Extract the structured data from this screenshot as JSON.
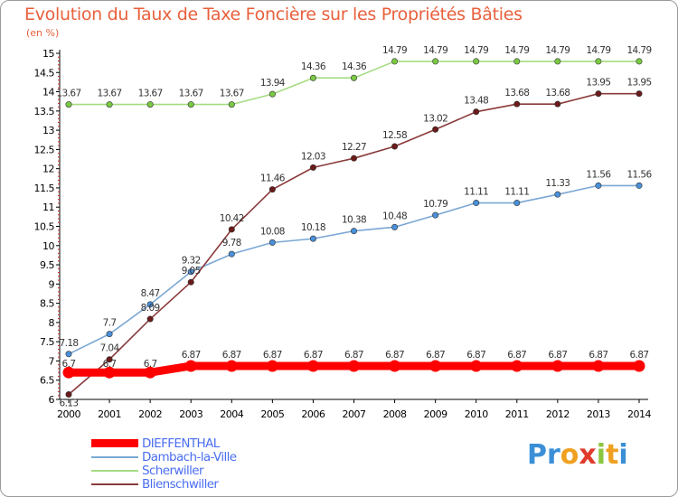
{
  "title": "Evolution du Taux de Taxe Foncière sur les Propriétés Bâties",
  "unit_label": "(en %)",
  "logo": {
    "text": "Proxiti",
    "letters": [
      {
        "ch": "P",
        "color": "#3a8fd6"
      },
      {
        "ch": "r",
        "color": "#3a8fd6"
      },
      {
        "ch": "o",
        "color": "#f0a020"
      },
      {
        "ch": "x",
        "color": "#e03a2c"
      },
      {
        "ch": "i",
        "color": "#8cc63f"
      },
      {
        "ch": "t",
        "color": "#f0a020"
      },
      {
        "ch": "i",
        "color": "#3a8fd6"
      }
    ]
  },
  "chart_data": {
    "type": "line",
    "x": [
      2000,
      2001,
      2002,
      2003,
      2004,
      2005,
      2006,
      2007,
      2008,
      2009,
      2010,
      2011,
      2012,
      2013,
      2014
    ],
    "ylim": [
      6,
      15
    ],
    "yticks": [
      6,
      6.5,
      7,
      7.5,
      8,
      8.5,
      9,
      9.5,
      10,
      10.5,
      11,
      11.5,
      12,
      12.5,
      13,
      13.5,
      14,
      14.5,
      15
    ],
    "ytick_labels": [
      "6",
      "6.5",
      "7",
      "7.5",
      "8",
      "8.5",
      "9",
      "9.5",
      "10",
      "10.5",
      "11",
      "11.5",
      "12",
      "12.5",
      "13",
      "13.5",
      "14",
      "14.5",
      "15"
    ],
    "grid": false,
    "legend_position": "bottom-left",
    "series": [
      {
        "name": "DIEFFENTHAL",
        "color": "#ff0000",
        "marker_color": "#ff0000",
        "emphasis": true,
        "values": [
          6.7,
          6.7,
          6.7,
          6.87,
          6.87,
          6.87,
          6.87,
          6.87,
          6.87,
          6.87,
          6.87,
          6.87,
          6.87,
          6.87,
          6.87
        ],
        "labels": [
          "6.7",
          "6.7",
          "6.7",
          "6.87",
          "6.87",
          "6.87",
          "6.87",
          "6.87",
          "6.87",
          "6.87",
          "6.87",
          "6.87",
          "6.87",
          "6.87",
          "6.87"
        ]
      },
      {
        "name": "Dambach-la-Ville",
        "color": "#7ba7d4",
        "marker_color": "#4a90d9",
        "emphasis": false,
        "values": [
          7.18,
          7.7,
          8.47,
          9.32,
          9.78,
          10.08,
          10.18,
          10.38,
          10.48,
          10.79,
          11.11,
          11.11,
          11.33,
          11.56,
          11.56
        ],
        "labels": [
          "7.18",
          "7.7",
          "8.47",
          "9.32",
          "9.78",
          "10.08",
          "10.18",
          "10.38",
          "10.48",
          "10.79",
          "11.11",
          "11.11",
          "11.33",
          "11.56",
          "11.56"
        ]
      },
      {
        "name": "Scherwiller",
        "color": "#a6dc84",
        "marker_color": "#7ac943",
        "emphasis": false,
        "values": [
          13.67,
          13.67,
          13.67,
          13.67,
          13.67,
          13.94,
          14.36,
          14.36,
          14.79,
          14.79,
          14.79,
          14.79,
          14.79,
          14.79,
          14.79
        ],
        "labels": [
          "13.67",
          "13.67",
          "13.67",
          "13.67",
          "13.67",
          "13.94",
          "14.36",
          "14.36",
          "14.79",
          "14.79",
          "14.79",
          "14.79",
          "14.79",
          "14.79",
          "14.79"
        ]
      },
      {
        "name": "Blienschwiller",
        "color": "#8a3a3a",
        "marker_color": "#6b1a1a",
        "emphasis": false,
        "values": [
          6.13,
          7.04,
          8.09,
          9.05,
          10.42,
          11.46,
          12.03,
          12.27,
          12.58,
          13.02,
          13.48,
          13.68,
          13.68,
          13.95,
          13.95
        ],
        "labels": [
          "6.13",
          "7.04",
          "8.09",
          "9.05",
          "10.42",
          "11.46",
          "12.03",
          "12.27",
          "12.58",
          "13.02",
          "13.48",
          "13.68",
          "13.68",
          "13.95",
          "13.95"
        ]
      }
    ]
  }
}
